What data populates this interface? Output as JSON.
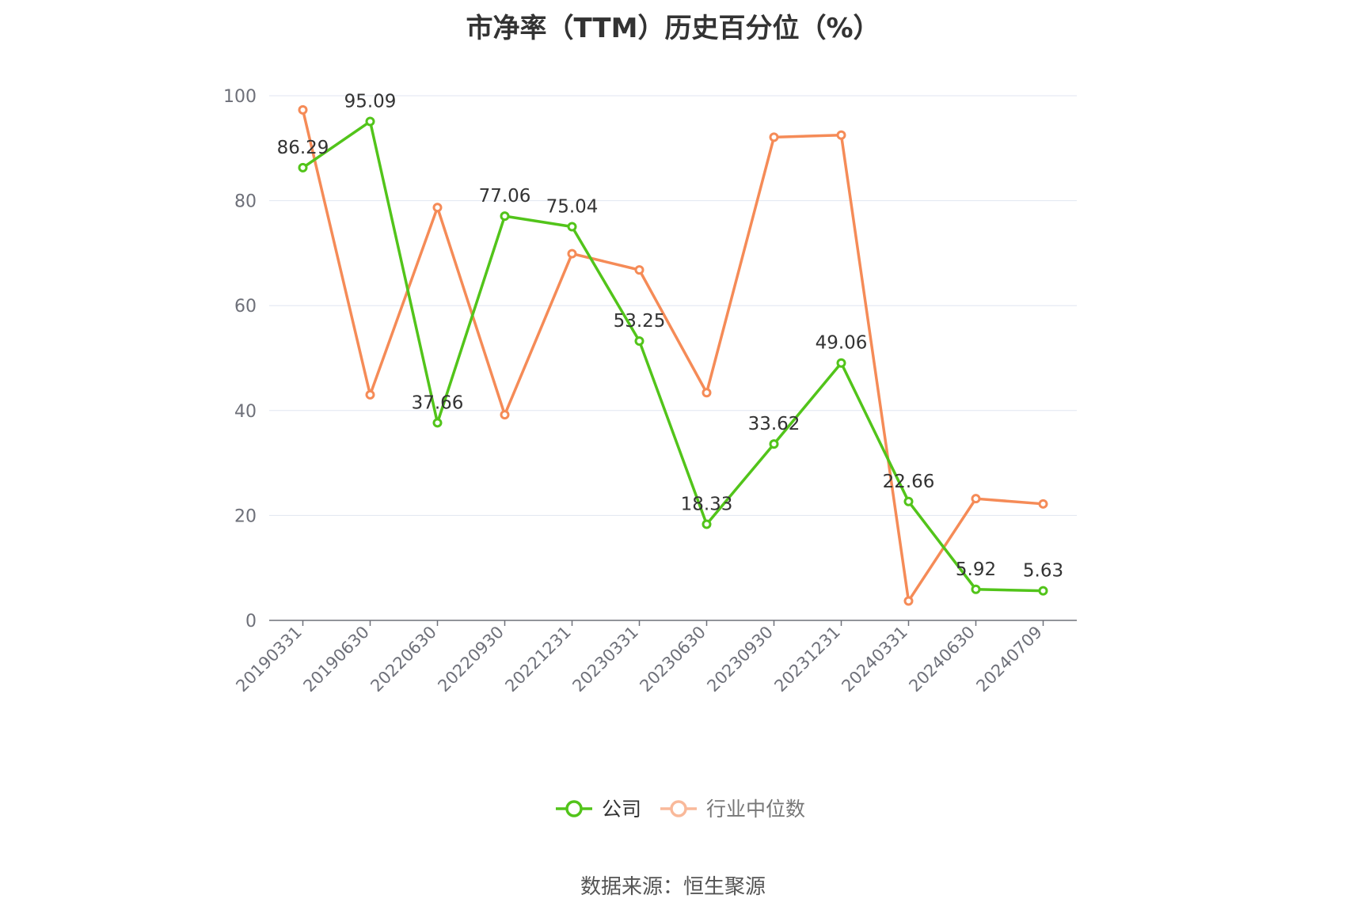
{
  "chart_data": {
    "type": "line",
    "title": "市净率（TTM）历史百分位（%）",
    "categories": [
      "20190331",
      "20190630",
      "20220630",
      "20220930",
      "20221231",
      "20230331",
      "20230630",
      "20230930",
      "20231231",
      "20240331",
      "20240630",
      "20240709"
    ],
    "series": [
      {
        "name": "公司",
        "color": "#52c41a",
        "values": [
          86.29,
          95.09,
          37.66,
          77.06,
          75.04,
          53.25,
          18.33,
          33.62,
          49.06,
          22.66,
          5.92,
          5.63
        ],
        "labels": [
          "86.29",
          "95.09",
          "37.66",
          "77.06",
          "75.04",
          "53.25",
          "18.33",
          "33.62",
          "49.06",
          "22.66",
          "5.92",
          "5.63"
        ]
      },
      {
        "name": "行业中位数",
        "color": "#f58b57",
        "values": [
          97.3,
          43.0,
          78.7,
          39.2,
          69.9,
          66.8,
          43.4,
          92.1,
          92.5,
          3.7,
          23.2,
          22.2
        ]
      }
    ],
    "ylim": [
      0,
      100
    ],
    "yticks": [
      "0",
      "20",
      "40",
      "60",
      "80",
      "100"
    ],
    "grid": true,
    "legend": "bottom-center"
  },
  "source": "数据来源：恒生聚源"
}
